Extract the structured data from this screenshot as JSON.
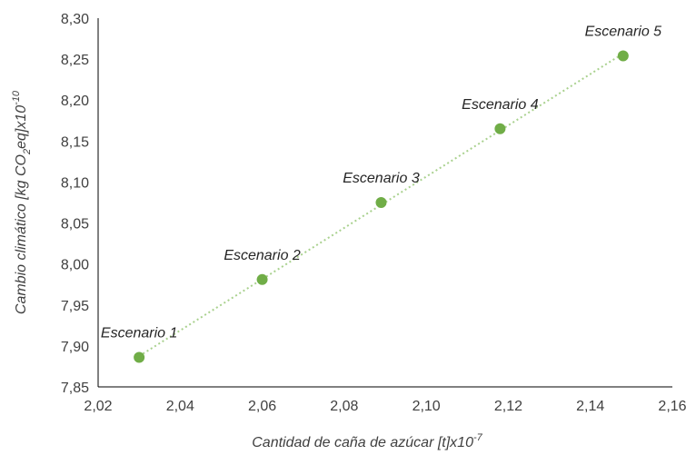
{
  "chart_data": {
    "type": "scatter",
    "title": "",
    "xlabel": {
      "main": "Cantidad de caña de azúcar [t]x10",
      "exp": "-7"
    },
    "ylabel": {
      "part1": "Cambio climático [kg CO",
      "sub": "2",
      "part2": "eq]x10",
      "exp": "-10"
    },
    "xlim": [
      2.02,
      2.16
    ],
    "ylim": [
      7.85,
      8.3
    ],
    "x_ticks": [
      2.02,
      2.04,
      2.06,
      2.08,
      2.1,
      2.12,
      2.14,
      2.16
    ],
    "y_ticks": [
      7.85,
      7.9,
      7.95,
      8.0,
      8.05,
      8.1,
      8.15,
      8.2,
      8.25,
      8.3
    ],
    "x_tick_labels": [
      "2,02",
      "2,04",
      "2,06",
      "2,08",
      "2,10",
      "2,12",
      "2,14",
      "2,16"
    ],
    "y_tick_labels": [
      "7,85",
      "7,90",
      "7,95",
      "8,00",
      "8,05",
      "8,10",
      "8,15",
      "8,20",
      "8,25",
      "8,30"
    ],
    "grid": false,
    "trendline": "linear-dotted",
    "series": [
      {
        "points": [
          {
            "x": 2.03,
            "y": 7.886,
            "label": "Escenario 1"
          },
          {
            "x": 2.06,
            "y": 7.981,
            "label": "Escenario 2"
          },
          {
            "x": 2.089,
            "y": 8.075,
            "label": "Escenario 3"
          },
          {
            "x": 2.118,
            "y": 8.165,
            "label": "Escenario 4"
          },
          {
            "x": 2.148,
            "y": 8.254,
            "label": "Escenario 5"
          }
        ]
      }
    ],
    "colors": {
      "marker": "#70AD47",
      "trendline": "#A9D18E",
      "axis": "#000000",
      "text": "#404040"
    }
  }
}
